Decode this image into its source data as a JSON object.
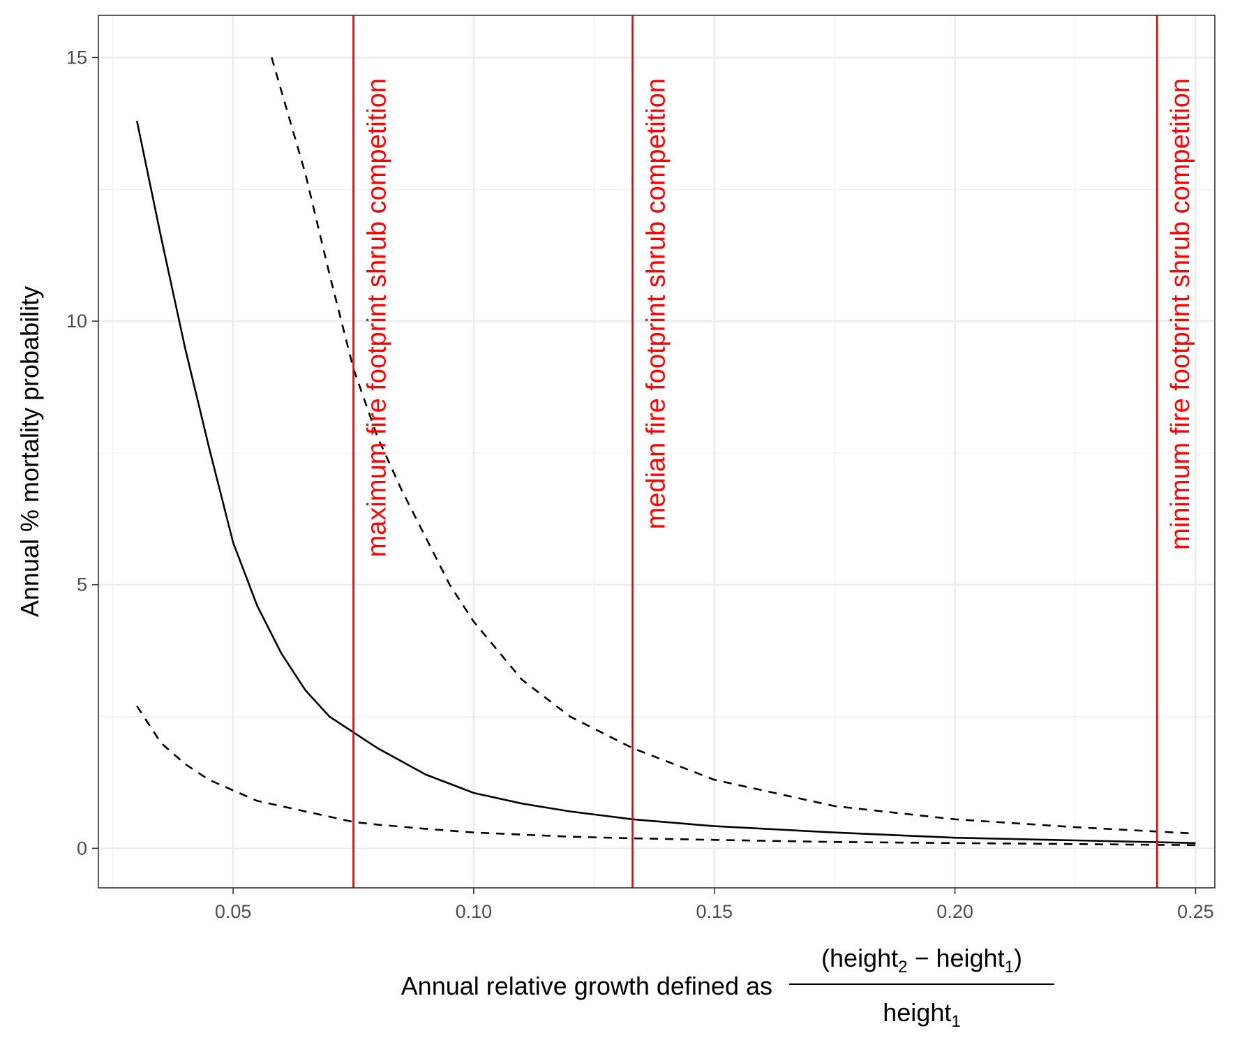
{
  "chart_data": {
    "type": "line",
    "title": "",
    "ylabel": "Annual % mortality probability",
    "xlabel": {
      "prefix": "Annual relative growth defined as",
      "numerator_open": "(height",
      "numerator_sub2": "2",
      "numerator_minus": " − height",
      "numerator_sub1": "1",
      "numerator_close": ")",
      "denominator": "height",
      "denominator_sub": "1"
    },
    "xlim": [
      0.022,
      0.254
    ],
    "ylim": [
      -0.75,
      15.8
    ],
    "x_ticks": [
      {
        "value": 0.05,
        "label": "0.05"
      },
      {
        "value": 0.1,
        "label": "0.10"
      },
      {
        "value": 0.15,
        "label": "0.15"
      },
      {
        "value": 0.2,
        "label": "0.20"
      },
      {
        "value": 0.25,
        "label": "0.25"
      }
    ],
    "y_ticks": [
      {
        "value": 0,
        "label": "0"
      },
      {
        "value": 5,
        "label": "5"
      },
      {
        "value": 10,
        "label": "10"
      },
      {
        "value": 15,
        "label": "15"
      }
    ],
    "grid": true,
    "series": [
      {
        "style": "solid",
        "x": [
          0.03,
          0.035,
          0.04,
          0.045,
          0.05,
          0.055,
          0.06,
          0.065,
          0.07,
          0.075,
          0.08,
          0.09,
          0.1,
          0.11,
          0.12,
          0.133,
          0.15,
          0.175,
          0.2,
          0.225,
          0.25
        ],
        "y": [
          13.8,
          11.6,
          9.5,
          7.6,
          5.8,
          4.6,
          3.7,
          3.0,
          2.5,
          2.2,
          1.9,
          1.4,
          1.05,
          0.85,
          0.7,
          0.55,
          0.42,
          0.3,
          0.2,
          0.15,
          0.1
        ]
      },
      {
        "style": "dashed",
        "x": [
          0.058,
          0.065,
          0.07,
          0.075,
          0.08,
          0.085,
          0.09,
          0.095,
          0.1,
          0.11,
          0.12,
          0.133,
          0.15,
          0.175,
          0.2,
          0.225,
          0.25
        ],
        "y": [
          15.0,
          12.8,
          10.9,
          9.1,
          7.8,
          6.8,
          5.9,
          5.0,
          4.3,
          3.2,
          2.5,
          1.9,
          1.3,
          0.8,
          0.55,
          0.4,
          0.28
        ]
      },
      {
        "style": "dashed",
        "x": [
          0.03,
          0.035,
          0.04,
          0.045,
          0.05,
          0.055,
          0.06,
          0.065,
          0.07,
          0.075,
          0.08,
          0.09,
          0.1,
          0.11,
          0.12,
          0.133,
          0.15,
          0.175,
          0.2,
          0.225,
          0.25
        ],
        "y": [
          2.7,
          2.0,
          1.6,
          1.3,
          1.1,
          0.9,
          0.8,
          0.7,
          0.6,
          0.5,
          0.45,
          0.37,
          0.3,
          0.26,
          0.22,
          0.19,
          0.16,
          0.12,
          0.1,
          0.08,
          0.06
        ]
      }
    ],
    "vlines": [
      {
        "x": 0.075,
        "label": "maximum fire footprint shrub competition",
        "color": "#ff0000"
      },
      {
        "x": 0.133,
        "label": "median fire footprint shrub competition",
        "color": "#ff0000"
      },
      {
        "x": 0.242,
        "label": "minimum fire footprint shrub competition",
        "color": "#ff0000"
      }
    ]
  }
}
